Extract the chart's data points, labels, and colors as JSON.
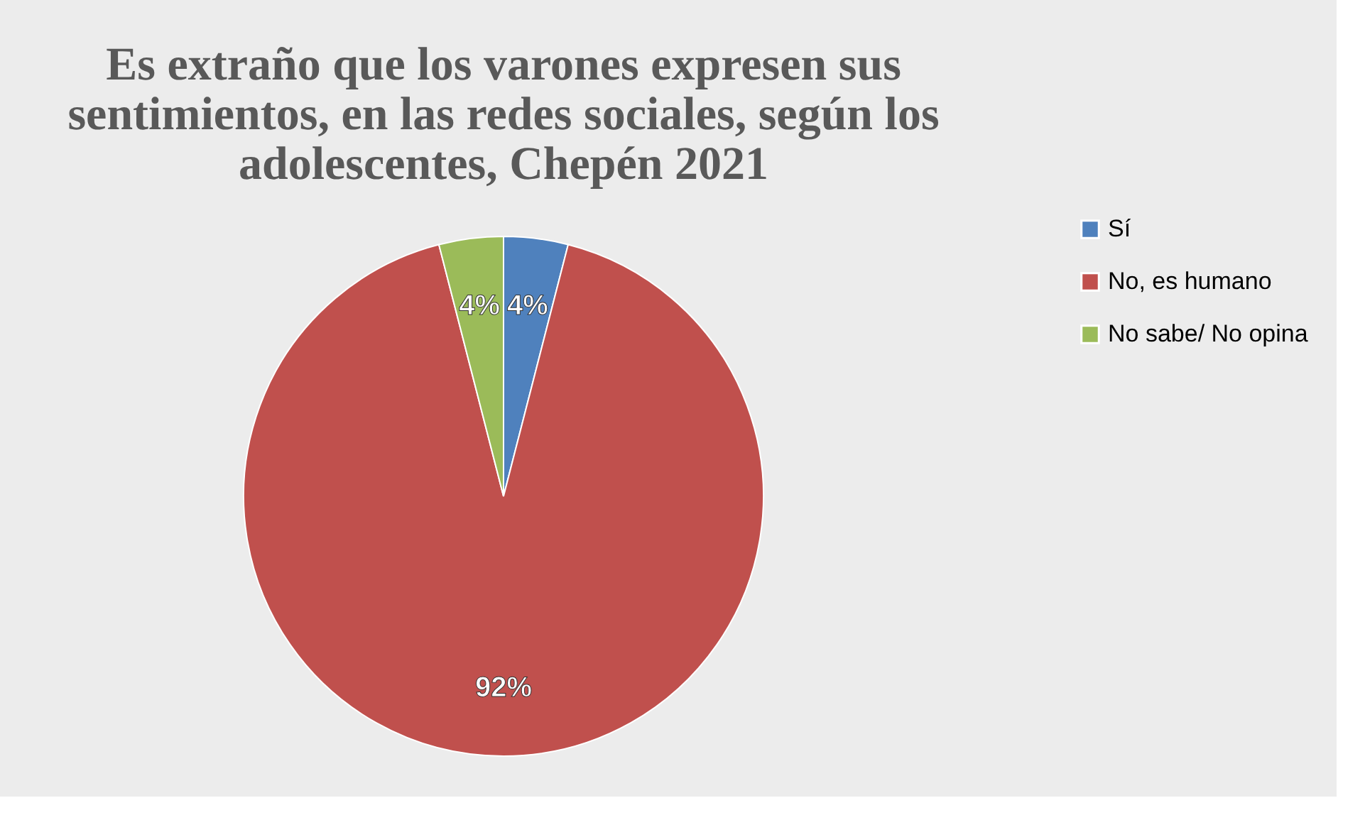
{
  "chart_data": {
    "type": "pie",
    "title": "Es extraño que los varones expresen sus sentimientos, en las redes sociales, según los adolescentes, Chepén 2021",
    "categories": [
      "Sí",
      "No, es humano",
      "No sabe/ No opina"
    ],
    "values": [
      4,
      92,
      4
    ],
    "colors": [
      "#4f81bd",
      "#c0504d",
      "#9bbb59"
    ],
    "value_labels": [
      "4%",
      "92%",
      "4%"
    ],
    "legend": "right"
  }
}
